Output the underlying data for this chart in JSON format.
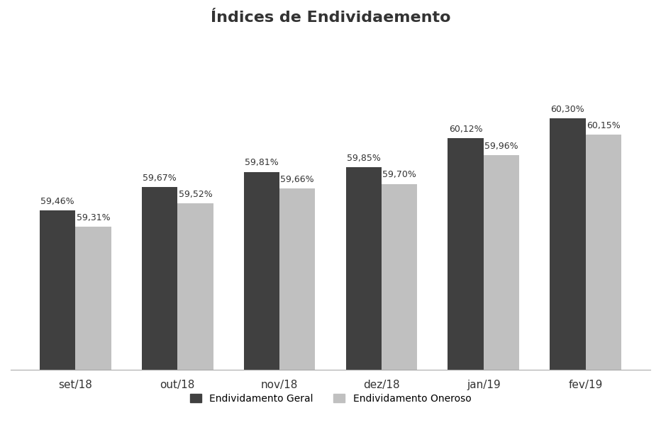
{
  "title": "Índices de Endividaemento",
  "categories": [
    "set/18",
    "out/18",
    "nov/18",
    "dez/18",
    "jan/19",
    "fev/19"
  ],
  "endividamento_geral": [
    59.46,
    59.67,
    59.81,
    59.85,
    60.12,
    60.3
  ],
  "endividamento_oneroso": [
    59.31,
    59.52,
    59.66,
    59.7,
    59.96,
    60.15
  ],
  "labels_geral": [
    "59,46%",
    "59,67%",
    "59,81%",
    "59,85%",
    "60,12%",
    "60,30%"
  ],
  "labels_oneroso": [
    "59,31%",
    "59,52%",
    "59,66%",
    "59,70%",
    "59,96%",
    "60,15%"
  ],
  "color_geral": "#404040",
  "color_oneroso": "#c0c0c0",
  "legend_geral": "Endividamento Geral",
  "legend_oneroso": "Endividamento Oneroso",
  "bar_bottom": 58.0,
  "ylim_min": 58.0,
  "ylim_max": 61.0,
  "bar_width": 0.35,
  "title_fontsize": 16,
  "label_fontsize": 9,
  "tick_fontsize": 11,
  "legend_fontsize": 10,
  "background_color": "#ffffff"
}
